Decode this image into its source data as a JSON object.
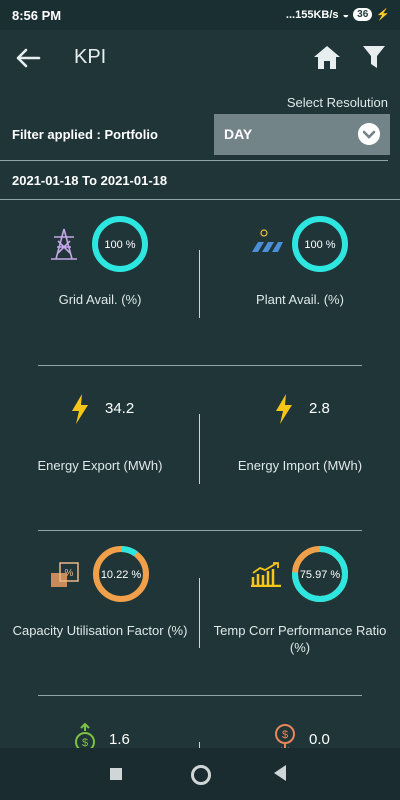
{
  "status": {
    "time": "8:56 PM",
    "net": "...155KB/s",
    "battery": "36"
  },
  "appbar": {
    "title": "KPI"
  },
  "filter": {
    "select_resolution": "Select Resolution",
    "filter_applied": "Filter applied : Portfolio",
    "resolution_value": "DAY",
    "date_range": "2021-01-18 To 2021-01-18"
  },
  "kpis": {
    "grid_avail": {
      "value_text": "100 %",
      "value": 100,
      "label": "Grid Avail. (%)"
    },
    "plant_avail": {
      "value_text": "100 %",
      "value": 100,
      "label": "Plant Avail. (%)"
    },
    "energy_export": {
      "value": "34.2",
      "label": "Energy Export (MWh)"
    },
    "energy_import": {
      "value": "2.8",
      "label": "Energy Import (MWh)"
    },
    "cuf": {
      "value_text": "10.22 %",
      "value": 10.22,
      "label": "Capacity Utilisation Factor (%)"
    },
    "tcpr": {
      "value_text": "75.97 %",
      "value": 75.97,
      "label_line1": "Temp Corr Performance Ratio",
      "label_line2": "(%)"
    },
    "revenue_up": {
      "value": "1.6"
    },
    "revenue_down": {
      "value": "0.0"
    }
  },
  "colors": {
    "accent": "#2ee6e0",
    "orange": "#f0a04a",
    "bolt": "#f5c518",
    "background": "#1f3538"
  },
  "nav": {
    "recents": "square-icon",
    "home": "circle-icon",
    "back": "triangle-back-icon"
  }
}
